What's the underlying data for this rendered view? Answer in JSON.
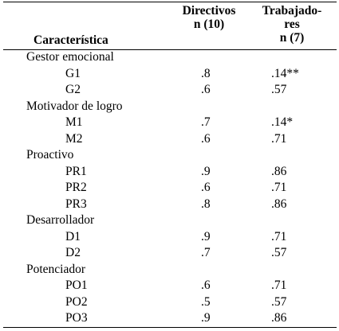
{
  "header": {
    "characteristic": "Característica",
    "directivos": [
      "Directivos",
      "n (10)"
    ],
    "trabajadores": [
      "Trabajado-",
      "res",
      "n (7)"
    ]
  },
  "groups": [
    {
      "name": "Gestor emocional",
      "rows": [
        {
          "code": "G1",
          "directivos": ".8",
          "trabajadores": ".14**"
        },
        {
          "code": "G2",
          "directivos": ".6",
          "trabajadores": ".57"
        }
      ]
    },
    {
      "name": "Motivador de logro",
      "rows": [
        {
          "code": "M1",
          "directivos": ".7",
          "trabajadores": ".14*"
        },
        {
          "code": "M2",
          "directivos": ".6",
          "trabajadores": ".71"
        }
      ]
    },
    {
      "name": "Proactivo",
      "rows": [
        {
          "code": "PR1",
          "directivos": ".9",
          "trabajadores": ".86"
        },
        {
          "code": "PR2",
          "directivos": ".6",
          "trabajadores": ".71"
        },
        {
          "code": "PR3",
          "directivos": ".8",
          "trabajadores": ".86"
        }
      ]
    },
    {
      "name": "Desarrollador",
      "rows": [
        {
          "code": "D1",
          "directivos": ".9",
          "trabajadores": ".71"
        },
        {
          "code": "D2",
          "directivos": ".7",
          "trabajadores": ".57"
        }
      ]
    },
    {
      "name": "Potenciador",
      "rows": [
        {
          "code": "PO1",
          "directivos": ".6",
          "trabajadores": ".71"
        },
        {
          "code": "PO2",
          "directivos": ".5",
          "trabajadores": ".57"
        },
        {
          "code": "PO3",
          "directivos": ".9",
          "trabajadores": ".86"
        }
      ]
    }
  ]
}
